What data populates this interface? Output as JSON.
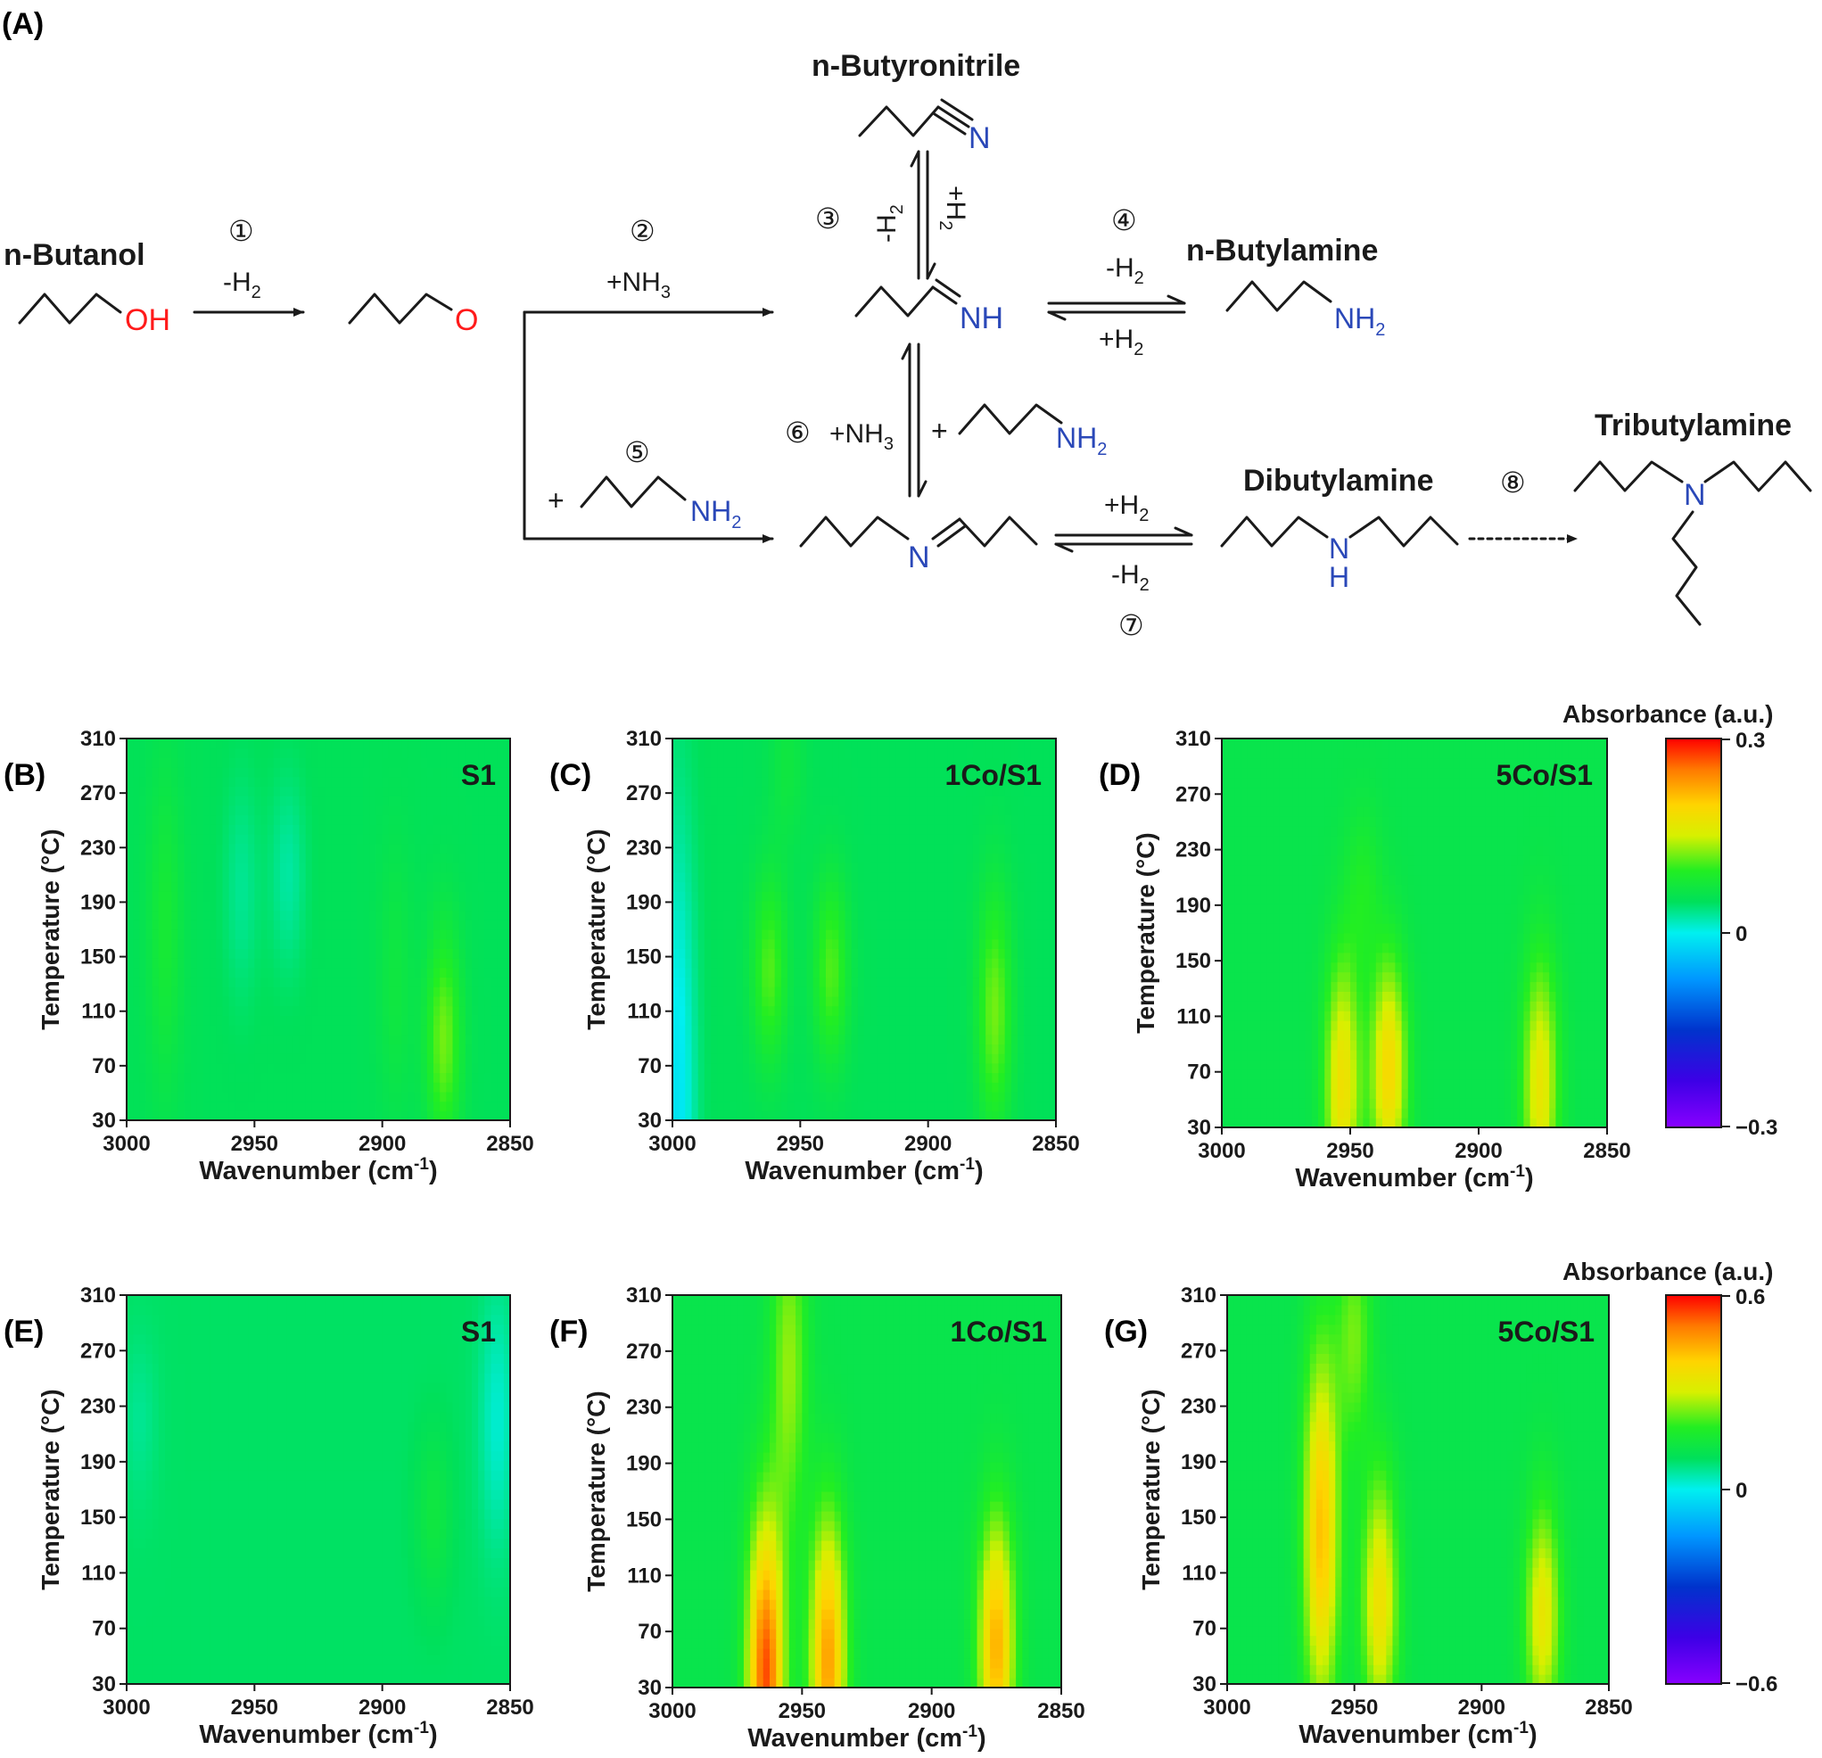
{
  "scheme": {
    "panel_label": "(A)",
    "compounds": {
      "butanol": "n-Butanol",
      "butyronitrile": "n-Butyronitrile",
      "butylamine": "n-Butylamine",
      "dibutylamine": "Dibutylamine",
      "tributylamine": "Tributylamine"
    },
    "atoms": {
      "oh": "OH",
      "o": "O",
      "n_nitrile": "N",
      "nh_imine": "NH",
      "nh2_butylamine": "NH",
      "nh2_reagent5": "NH",
      "nh2_reagent6": "NH",
      "n_imine": "N",
      "n_dibutyl": "N",
      "h_dibutyl": "H",
      "n_tributyl": "N",
      "sub2": "2"
    },
    "steps": [
      {
        "num": "①",
        "label": "-H",
        "sub": "2"
      },
      {
        "num": "②",
        "label": "+NH",
        "sub": "3"
      },
      {
        "num": "③",
        "label": "-H",
        "sub": "2",
        "reverse": "+H",
        "reverse_sub": "2"
      },
      {
        "num": "④",
        "label": "-H",
        "sub": "2",
        "reverse": "+H",
        "reverse_sub": "2"
      },
      {
        "num": "⑤",
        "label": "+"
      },
      {
        "num": "⑥",
        "label": "+NH",
        "sub": "3",
        "extra": "+"
      },
      {
        "num": "⑦",
        "label": "+H",
        "sub": "2",
        "reverse": "-H",
        "reverse_sub": "2"
      },
      {
        "num": "⑧"
      }
    ]
  },
  "colorbars": [
    {
      "title": "Absorbance (a.u.)",
      "max": 0.3,
      "min": -0.3,
      "max_label": "0.3",
      "zero_label": "0",
      "min_label": "−0.3"
    },
    {
      "title": "Absorbance (a.u.)",
      "max": 0.6,
      "min": -0.6,
      "max_label": "0.6",
      "zero_label": "0",
      "min_label": "−0.6"
    }
  ],
  "chart_data": [
    {
      "type": "heatmap",
      "panel": "(B)",
      "sample": "S1",
      "xlabel": "Wavenumber (cm",
      "xlabel_sup": "-1",
      "xlabel_end": ")",
      "ylabel": "Temperature (°C)",
      "xlim": [
        3000,
        2850
      ],
      "ylim": [
        30,
        310
      ],
      "xticks": [
        "3000",
        "2950",
        "2900",
        "2850"
      ],
      "yticks": [
        "30",
        "70",
        "110",
        "150",
        "190",
        "230",
        "270",
        "310"
      ],
      "scale": 0.3,
      "peaks": [
        {
          "wn": 2985,
          "t_center": 170,
          "t_width": 120,
          "amp": 0.03
        },
        {
          "wn": 2955,
          "t_center": 200,
          "t_width": 80,
          "amp": -0.02
        },
        {
          "wn": 2937,
          "t_center": 210,
          "t_width": 70,
          "amp": -0.025
        },
        {
          "wn": 2876,
          "t_center": 90,
          "t_width": 80,
          "amp": 0.07
        },
        {
          "wn": 2895,
          "t_center": 130,
          "t_width": 100,
          "amp": 0.02
        }
      ],
      "baseline": 0.05
    },
    {
      "type": "heatmap",
      "panel": "(C)",
      "sample": "1Co/S1",
      "xlabel": "Wavenumber (cm",
      "xlabel_sup": "-1",
      "xlabel_end": ")",
      "ylabel": "Temperature (°C)",
      "xlim": [
        3000,
        2850
      ],
      "ylim": [
        30,
        310
      ],
      "xticks": [
        "3000",
        "2950",
        "2900",
        "2850"
      ],
      "yticks": [
        "30",
        "70",
        "110",
        "150",
        "190",
        "230",
        "270",
        "310"
      ],
      "scale": 0.3,
      "peaks": [
        {
          "wn": 2998,
          "t_center": 40,
          "t_width": 200,
          "amp": -0.06
        },
        {
          "wn": 2962,
          "t_center": 140,
          "t_width": 70,
          "amp": 0.06
        },
        {
          "wn": 2938,
          "t_center": 140,
          "t_width": 70,
          "amp": 0.06
        },
        {
          "wn": 2874,
          "t_center": 110,
          "t_width": 90,
          "amp": 0.07
        },
        {
          "wn": 2955,
          "t_center": 290,
          "t_width": 60,
          "amp": 0.02
        }
      ],
      "baseline": 0.05
    },
    {
      "type": "heatmap",
      "panel": "(D)",
      "sample": "5Co/S1",
      "xlabel": "Wavenumber (cm",
      "xlabel_sup": "-1",
      "xlabel_end": ")",
      "ylabel": "Temperature (°C)",
      "xlim": [
        3000,
        2850
      ],
      "ylim": [
        30,
        310
      ],
      "xticks": [
        "3000",
        "2950",
        "2900",
        "2850"
      ],
      "yticks": [
        "30",
        "70",
        "110",
        "150",
        "190",
        "230",
        "270",
        "310"
      ],
      "scale": 0.3,
      "peaks": [
        {
          "wn": 2953,
          "t_center": 60,
          "t_width": 90,
          "amp": 0.12
        },
        {
          "wn": 2935,
          "t_center": 70,
          "t_width": 80,
          "amp": 0.13
        },
        {
          "wn": 2876,
          "t_center": 60,
          "t_width": 90,
          "amp": 0.11
        },
        {
          "wn": 2945,
          "t_center": 200,
          "t_width": 60,
          "amp": 0.03
        }
      ],
      "baseline": 0.06
    },
    {
      "type": "heatmap",
      "panel": "(E)",
      "sample": "S1",
      "xlabel": "Wavenumber (cm",
      "xlabel_sup": "-1",
      "xlabel_end": ")",
      "ylabel": "Temperature (°C)",
      "xlim": [
        3000,
        2850
      ],
      "ylim": [
        30,
        310
      ],
      "xticks": [
        "3000",
        "2950",
        "2900",
        "2850"
      ],
      "yticks": [
        "30",
        "70",
        "110",
        "150",
        "190",
        "230",
        "270",
        "310"
      ],
      "scale": 0.6,
      "peaks": [
        {
          "wn": 2855,
          "t_center": 220,
          "t_width": 90,
          "amp": -0.07
        },
        {
          "wn": 2880,
          "t_center": 150,
          "t_width": 60,
          "amp": 0.05
        },
        {
          "wn": 2995,
          "t_center": 220,
          "t_width": 60,
          "amp": -0.03
        }
      ],
      "baseline": 0.09
    },
    {
      "type": "heatmap",
      "panel": "(F)",
      "sample": "1Co/S1",
      "xlabel": "Wavenumber (cm",
      "xlabel_sup": "-1",
      "xlabel_end": ")",
      "ylabel": "Temperature (°C)",
      "xlim": [
        3000,
        2850
      ],
      "ylim": [
        30,
        310
      ],
      "xticks": [
        "3000",
        "2950",
        "2900",
        "2850"
      ],
      "yticks": [
        "30",
        "70",
        "110",
        "150",
        "190",
        "230",
        "270",
        "310"
      ],
      "scale": 0.6,
      "peaks": [
        {
          "wn": 2964,
          "t_center": 40,
          "t_width": 110,
          "amp": 0.42
        },
        {
          "wn": 2940,
          "t_center": 50,
          "t_width": 100,
          "amp": 0.34
        },
        {
          "wn": 2875,
          "t_center": 60,
          "t_width": 90,
          "amp": 0.32
        },
        {
          "wn": 2955,
          "t_center": 260,
          "t_width": 120,
          "amp": 0.14
        }
      ],
      "baseline": 0.12
    },
    {
      "type": "heatmap",
      "panel": "(G)",
      "sample": "5Co/S1",
      "xlabel": "Wavenumber (cm",
      "xlabel_sup": "-1",
      "xlabel_end": ")",
      "ylabel": "Temperature (°C)",
      "xlim": [
        3000,
        2850
      ],
      "ylim": [
        30,
        310
      ],
      "xticks": [
        "3000",
        "2950",
        "2900",
        "2850"
      ],
      "yticks": [
        "30",
        "70",
        "110",
        "150",
        "190",
        "230",
        "270",
        "310"
      ],
      "scale": 0.6,
      "peaks": [
        {
          "wn": 2963,
          "t_center": 140,
          "t_width": 130,
          "amp": 0.3
        },
        {
          "wn": 2940,
          "t_center": 90,
          "t_width": 90,
          "amp": 0.24
        },
        {
          "wn": 2876,
          "t_center": 80,
          "t_width": 80,
          "amp": 0.22
        },
        {
          "wn": 2950,
          "t_center": 280,
          "t_width": 80,
          "amp": 0.12
        }
      ],
      "baseline": 0.12
    }
  ]
}
